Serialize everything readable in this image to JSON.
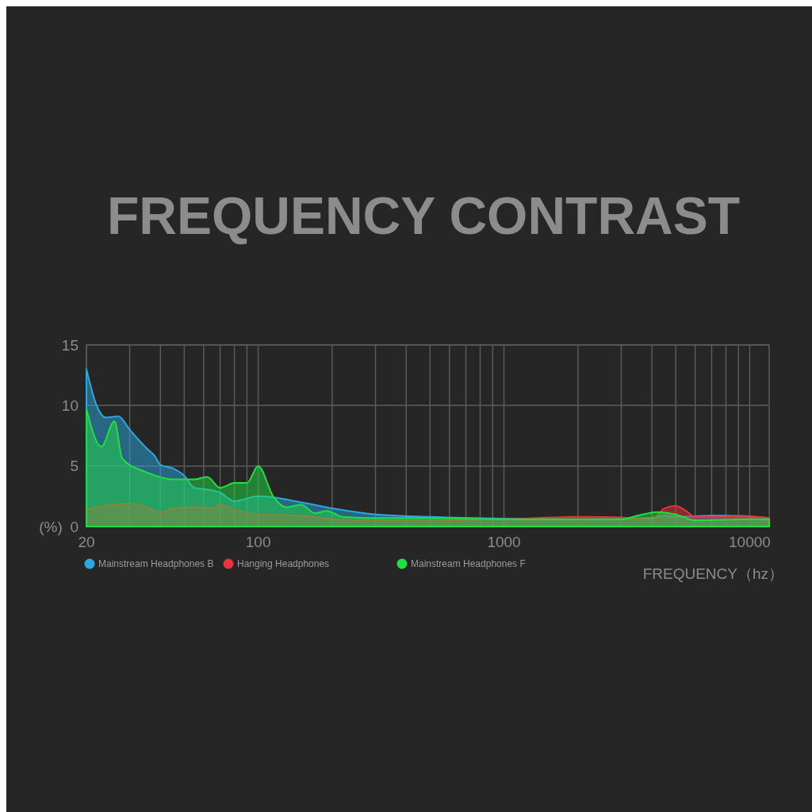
{
  "chart_data": {
    "type": "area",
    "title": "FREQUENCY CONTRAST",
    "xlabel": "FREQUENCY（hz）",
    "ylabel": "(%)",
    "log": "x",
    "grid": true,
    "legend": "bottom",
    "xlim": [
      20,
      12000
    ],
    "ylim": [
      0,
      15
    ],
    "yticks": [
      0,
      5,
      10,
      15
    ],
    "xticks": [
      20,
      {
        "value": 30,
        "label": null
      },
      {
        "value": 40,
        "label": null
      },
      {
        "value": 50,
        "label": null
      },
      {
        "value": 60,
        "label": null
      },
      {
        "value": 70,
        "label": null
      },
      {
        "value": 80,
        "label": null
      },
      {
        "value": 90,
        "label": null
      },
      100,
      {
        "value": 200,
        "label": null
      },
      {
        "value": 300,
        "label": null
      },
      {
        "value": 400,
        "label": null
      },
      {
        "value": 500,
        "label": null
      },
      {
        "value": 600,
        "label": null
      },
      {
        "value": 700,
        "label": null
      },
      {
        "value": 800,
        "label": null
      },
      {
        "value": 900,
        "label": null
      },
      1000,
      {
        "value": 2000,
        "label": null
      },
      {
        "value": 3000,
        "label": null
      },
      {
        "value": 4000,
        "label": null
      },
      {
        "value": 5000,
        "label": null
      },
      {
        "value": 6000,
        "label": null
      },
      {
        "value": 7000,
        "label": null
      },
      {
        "value": 8000,
        "label": null
      },
      {
        "value": 9000,
        "label": null
      },
      10000
    ],
    "series": [
      {
        "name": "Mainstream Headphones B",
        "color": "#2aa8e0",
        "x": [
          20,
          22,
          24,
          27,
          30,
          35,
          38,
          40,
          45,
          50,
          55,
          60,
          70,
          80,
          100,
          150,
          200,
          300,
          500,
          1000,
          2000,
          4000,
          4500,
          5000,
          7000,
          8000,
          12000
        ],
        "values": [
          13,
          10,
          9,
          9.1,
          8,
          6.5,
          5.8,
          5.1,
          4.8,
          4.2,
          3.2,
          3.1,
          2.8,
          2.1,
          2.5,
          2,
          1.5,
          1,
          0.8,
          0.65,
          0.6,
          0.7,
          0.9,
          0.8,
          0.9,
          0.9,
          0.7
        ]
      },
      {
        "name": "Hanging Headphones",
        "color": "#e8333a",
        "x": [
          20,
          25,
          30,
          35,
          40,
          45,
          55,
          65,
          70,
          80,
          100,
          150,
          200,
          300,
          500,
          1000,
          2000,
          3000,
          4000,
          4500,
          5000,
          5500,
          6000,
          8000,
          9000,
          12000
        ],
        "values": [
          1.4,
          1.8,
          1.9,
          1.6,
          1.2,
          1.5,
          1.6,
          1.5,
          1.8,
          1.4,
          1,
          0.9,
          0.6,
          0.5,
          0.5,
          0.6,
          0.8,
          0.75,
          0.6,
          1.5,
          1.7,
          1.3,
          0.8,
          0.8,
          0.9,
          0.7
        ]
      },
      {
        "name": "Mainstream Headphones F",
        "color": "#22dd44",
        "x": [
          20,
          23,
          26,
          28,
          35,
          45,
          55,
          62,
          70,
          80,
          90,
          100,
          115,
          130,
          150,
          170,
          190,
          220,
          300,
          500,
          1000,
          2000,
          3000,
          3500,
          4200,
          5000,
          6000,
          10000,
          12000
        ],
        "values": [
          9.7,
          6.6,
          8.7,
          5.6,
          4.5,
          3.9,
          3.9,
          4.1,
          3.2,
          3.6,
          3.6,
          5,
          2.5,
          1.6,
          1.8,
          1.1,
          1.3,
          0.8,
          0.7,
          0.7,
          0.6,
          0.6,
          0.6,
          0.9,
          1.2,
          1,
          0.5,
          0.6,
          0.6
        ]
      }
    ]
  }
}
